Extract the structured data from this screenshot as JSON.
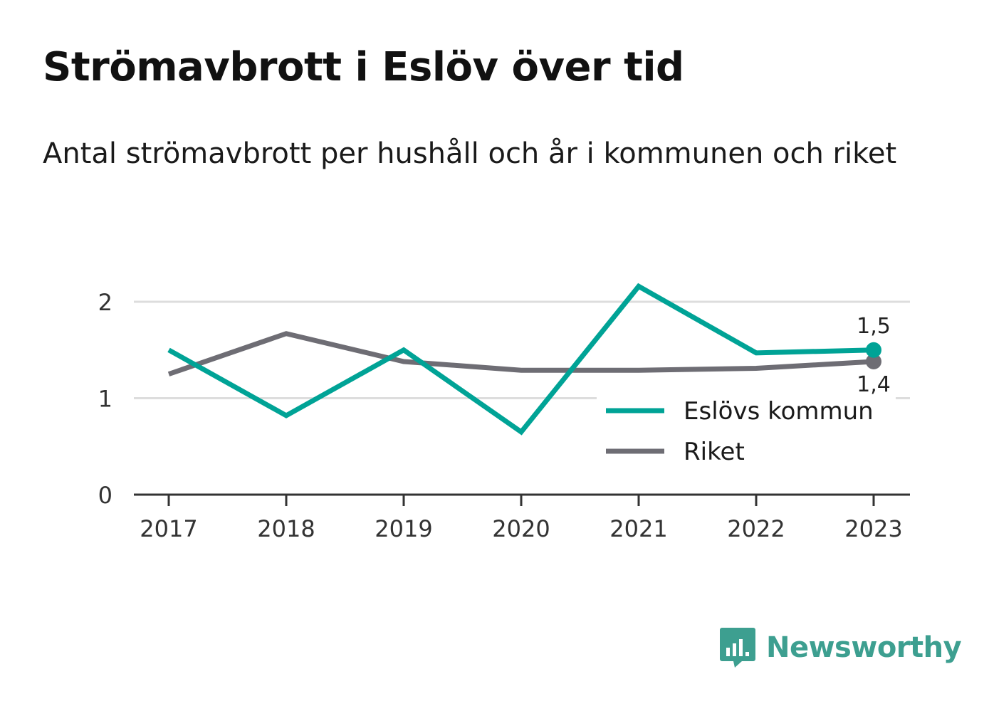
{
  "header": {
    "title": "Strömavbrott i Eslöv över tid",
    "subtitle": "Antal strömavbrott per hushåll och år i kommunen och riket"
  },
  "brand": {
    "name": "Newsworthy",
    "color": "#3d9f90"
  },
  "chart_data": {
    "type": "line",
    "x": [
      "2017",
      "2018",
      "2019",
      "2020",
      "2021",
      "2022",
      "2023"
    ],
    "ylim": [
      0,
      2.3
    ],
    "yticks": [
      0,
      1,
      2
    ],
    "ytick_labels": [
      "0",
      "1",
      "2"
    ],
    "grid": true,
    "legend_position": "right",
    "series": [
      {
        "name": "Eslövs kommun",
        "color": "#00a396",
        "values": [
          1.5,
          0.82,
          1.5,
          0.65,
          2.16,
          1.47,
          1.5
        ],
        "end_label": "1,5"
      },
      {
        "name": "Riket",
        "color": "#6e6d74",
        "values": [
          1.25,
          1.67,
          1.38,
          1.29,
          1.29,
          1.31,
          1.38
        ],
        "end_label": "1,4"
      }
    ]
  }
}
